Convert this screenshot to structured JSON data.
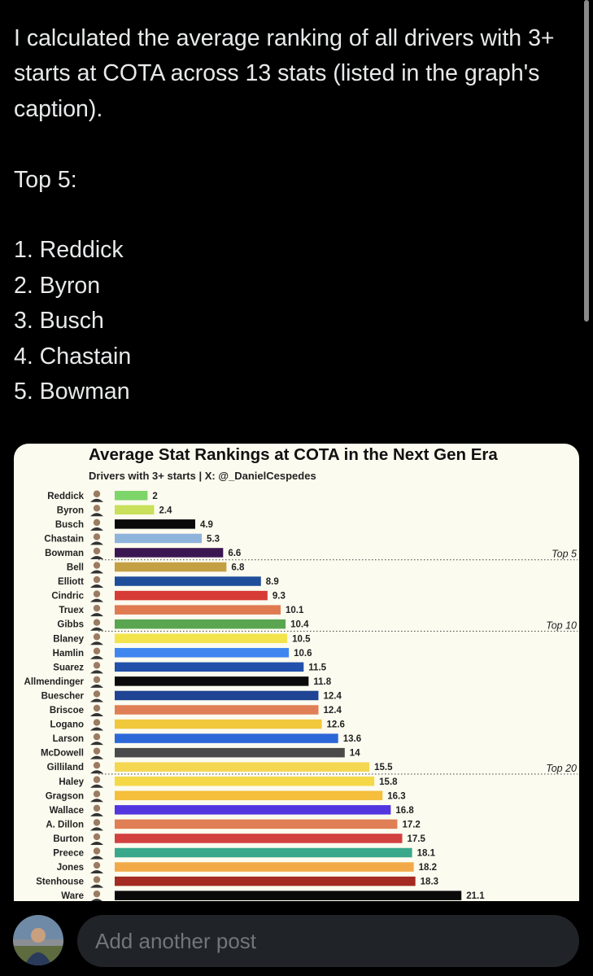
{
  "post": {
    "intro": "I calculated the average ranking of all drivers with 3+ starts at COTA across 13 stats (listed in the graph's caption).",
    "top5_heading": "Top 5:",
    "top5": [
      "1. Reddick",
      "2. Byron",
      "3. Busch",
      "4. Chastain",
      "5. Bowman"
    ]
  },
  "chart_data": {
    "type": "bar",
    "orientation": "horizontal",
    "title": "Average Stat Rankings at COTA in the Next Gen Era",
    "subtitle": "Drivers with 3+ starts | X: @_DanielCespedes",
    "xlabel": "",
    "ylabel": "",
    "xlim": [
      0,
      22
    ],
    "grid": false,
    "categories": [
      "Reddick",
      "Byron",
      "Busch",
      "Chastain",
      "Bowman",
      "Bell",
      "Elliott",
      "Cindric",
      "Truex",
      "Gibbs",
      "Blaney",
      "Hamlin",
      "Suarez",
      "Allmendinger",
      "Buescher",
      "Briscoe",
      "Logano",
      "Larson",
      "McDowell",
      "Gilliland",
      "Haley",
      "Gragson",
      "Wallace",
      "A. Dillon",
      "Burton",
      "Preece",
      "Jones",
      "Stenhouse",
      "Ware"
    ],
    "values": [
      2,
      2.4,
      4.9,
      5.3,
      6.6,
      6.8,
      8.9,
      9.3,
      10.1,
      10.4,
      10.5,
      10.6,
      11.5,
      11.8,
      12.4,
      12.4,
      12.6,
      13.6,
      14,
      15.5,
      15.8,
      16.3,
      16.8,
      17.2,
      17.5,
      18.1,
      18.2,
      18.3,
      21.1
    ],
    "value_labels": [
      "2",
      "2.4",
      "4.9",
      "5.3",
      "6.6",
      "6.8",
      "8.9",
      "9.3",
      "10.1",
      "10.4",
      "10.5",
      "10.6",
      "11.5",
      "11.8",
      "12.4",
      "12.4",
      "12.6",
      "13.6",
      "14",
      "15.5",
      "15.8",
      "16.3",
      "16.8",
      "17.2",
      "17.5",
      "18.1",
      "18.2",
      "18.3",
      "21.1"
    ],
    "colors": [
      "#7ed56a",
      "#c8e05a",
      "#0a0a0a",
      "#8fb4dc",
      "#3b1752",
      "#c4a044",
      "#1f4f9a",
      "#d63c35",
      "#e07a50",
      "#5aa650",
      "#f3e34c",
      "#3f86f0",
      "#2350aa",
      "#0a0a0a",
      "#1f4494",
      "#e07e55",
      "#f0c83c",
      "#2d68d8",
      "#4a4a4a",
      "#f4d650",
      "#f5d848",
      "#f5bf3c",
      "#5236e0",
      "#e07e55",
      "#d24040",
      "#3aa88a",
      "#f2aa48",
      "#a42a22",
      "#0a0a0a"
    ],
    "annotations": [
      {
        "text": "Top 5",
        "after_index": 4
      },
      {
        "text": "Top 10",
        "after_index": 9
      },
      {
        "text": "Top 20",
        "after_index": 19
      }
    ]
  },
  "composer": {
    "placeholder": "Add another post"
  }
}
